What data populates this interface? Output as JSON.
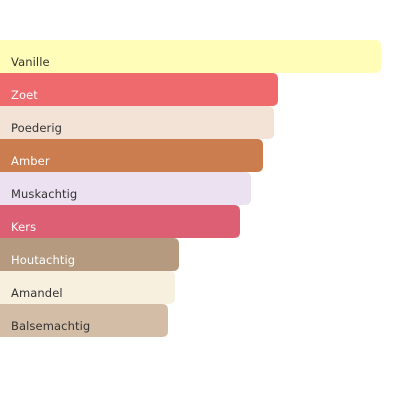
{
  "chart_data": {
    "type": "bar",
    "orientation": "horizontal",
    "categories": [
      "Vanille",
      "Zoet",
      "Poederig",
      "Amber",
      "Muskachtig",
      "Kers",
      "Houtachtig",
      "Amandel",
      "Balsemachtig"
    ],
    "values": [
      100,
      73,
      72,
      69,
      66,
      63,
      47,
      46,
      44
    ],
    "colors": [
      "#FFFDB8",
      "#EE6A6D",
      "#F2E3D6",
      "#CC7D4F",
      "#ECE1F0",
      "#DC5F73",
      "#B59A7F",
      "#F7F0DE",
      "#D4BDA7"
    ],
    "label_colors": [
      "#333333",
      "#ffffff",
      "#333333",
      "#ffffff",
      "#333333",
      "#ffffff",
      "#ffffff",
      "#333333",
      "#333333"
    ],
    "xlim": [
      0,
      100
    ],
    "grid": false,
    "legend": "none"
  }
}
